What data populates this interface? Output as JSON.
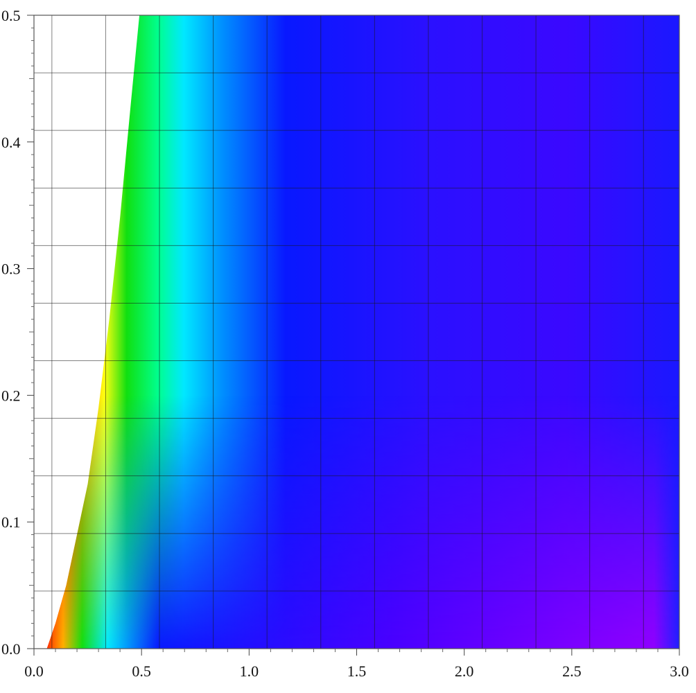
{
  "chart_data": {
    "type": "heatmap",
    "title": "",
    "xlabel": "",
    "ylabel": "",
    "xlim": [
      0.0,
      3.0
    ],
    "ylim": [
      0.0,
      0.5
    ],
    "x_ticks": [
      "0.0",
      "0.5",
      "1.0",
      "1.5",
      "2.0",
      "2.5",
      "3.0"
    ],
    "y_ticks": [
      "0.0",
      "0.1",
      "0.2",
      "0.3",
      "0.4",
      "0.5"
    ],
    "grid": true,
    "grid_x": [
      0.0,
      0.0833,
      0.3333,
      0.5833,
      0.8333,
      1.0833,
      1.3333,
      1.5833,
      1.8333,
      2.0833,
      2.3333,
      2.5833,
      2.8333
    ],
    "grid_y": [
      0.0,
      0.0455,
      0.0909,
      0.1364,
      0.1818,
      0.2273,
      0.2727,
      0.3182,
      0.3636,
      0.4091,
      0.4545,
      0.5
    ],
    "domain_boundary": {
      "description_free": true,
      "x": [
        0.06,
        0.1,
        0.15,
        0.2,
        0.25,
        0.3,
        0.35,
        0.4,
        0.45,
        0.49
      ],
      "y": [
        0.0,
        0.02,
        0.05,
        0.09,
        0.13,
        0.19,
        0.26,
        0.34,
        0.43,
        0.5
      ]
    },
    "color_scale": [
      "#ff0000",
      "#ffff00",
      "#00ff00",
      "#00ffff",
      "#0000ff",
      "#8a00ff"
    ],
    "colors": {
      "red": "#ff1a00",
      "yellow": "#ffff00",
      "green": "#10e010",
      "cyan": "#00e8ff",
      "blue": "#0818ff",
      "violet": "#8a00ff",
      "grid": "#1a1a1a",
      "frame": "#555555"
    }
  }
}
